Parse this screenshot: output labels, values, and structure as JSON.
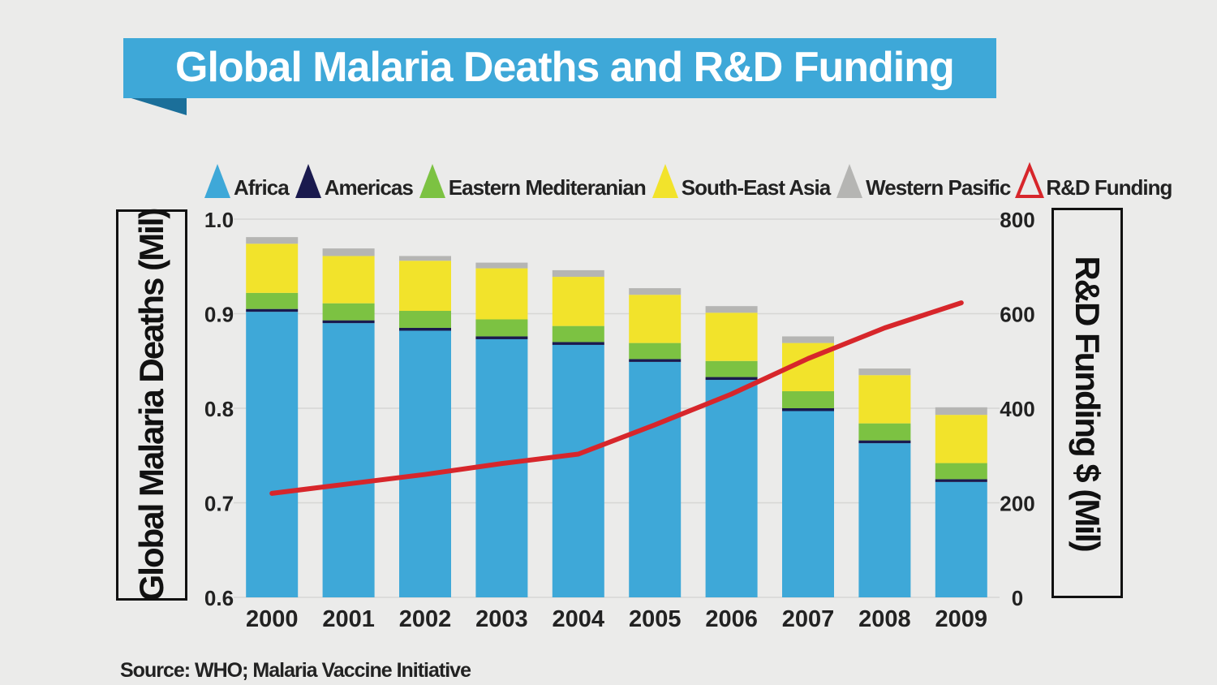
{
  "title": "Global Malaria Deaths and R&D Funding",
  "source": "Source:  WHO; Malaria Vaccine Initiative",
  "legend": [
    {
      "label": "Africa",
      "color": "#3ea8d8",
      "outline": false
    },
    {
      "label": "Americas",
      "color": "#1a1a4e",
      "outline": false
    },
    {
      "label": "Eastern Mediteranian",
      "color": "#7cc242",
      "outline": false
    },
    {
      "label": "South-East Asia",
      "color": "#f2e32b",
      "outline": false
    },
    {
      "label": "Western Pasific",
      "color": "#b5b5b3",
      "outline": false
    },
    {
      "label": "R&D Funding",
      "color": "#d7262b",
      "outline": true
    }
  ],
  "chart_data": {
    "type": "bar",
    "stacked": true,
    "categories": [
      "2000",
      "2001",
      "2002",
      "2003",
      "2004",
      "2005",
      "2006",
      "2007",
      "2008",
      "2009"
    ],
    "ylabel": "Global Malaria Deaths (Mil)",
    "y2label": "R&D Funding $ (Mil)",
    "ylim": [
      0.6,
      1.0
    ],
    "y2lim": [
      0,
      800
    ],
    "yticks": [
      "0.6",
      "0.7",
      "0.8",
      "0.9",
      "1.0"
    ],
    "y2ticks": [
      "0",
      "200",
      "400",
      "600",
      "800"
    ],
    "grid": true,
    "legend_position": "top",
    "series": [
      {
        "name": "Africa",
        "color": "#3ea8d8",
        "values": [
          0.902,
          0.89,
          0.882,
          0.873,
          0.867,
          0.849,
          0.83,
          0.797,
          0.763,
          0.722
        ]
      },
      {
        "name": "Americas",
        "color": "#1a1a4e",
        "values": [
          0.003,
          0.003,
          0.003,
          0.003,
          0.003,
          0.003,
          0.003,
          0.003,
          0.003,
          0.003
        ]
      },
      {
        "name": "Eastern Mediteranian",
        "color": "#7cc242",
        "values": [
          0.017,
          0.018,
          0.018,
          0.018,
          0.017,
          0.017,
          0.017,
          0.018,
          0.018,
          0.017
        ]
      },
      {
        "name": "South-East Asia",
        "color": "#f2e32b",
        "values": [
          0.052,
          0.05,
          0.053,
          0.054,
          0.052,
          0.051,
          0.051,
          0.051,
          0.051,
          0.051
        ]
      },
      {
        "name": "Western Pasific",
        "color": "#b5b5b3",
        "values": [
          0.007,
          0.008,
          0.005,
          0.006,
          0.007,
          0.007,
          0.007,
          0.007,
          0.007,
          0.008
        ]
      }
    ],
    "line_series": {
      "name": "R&D Funding",
      "color": "#d7262b",
      "axis": "right",
      "values": [
        220,
        240,
        260,
        283,
        303,
        365,
        430,
        505,
        570,
        623
      ]
    }
  }
}
